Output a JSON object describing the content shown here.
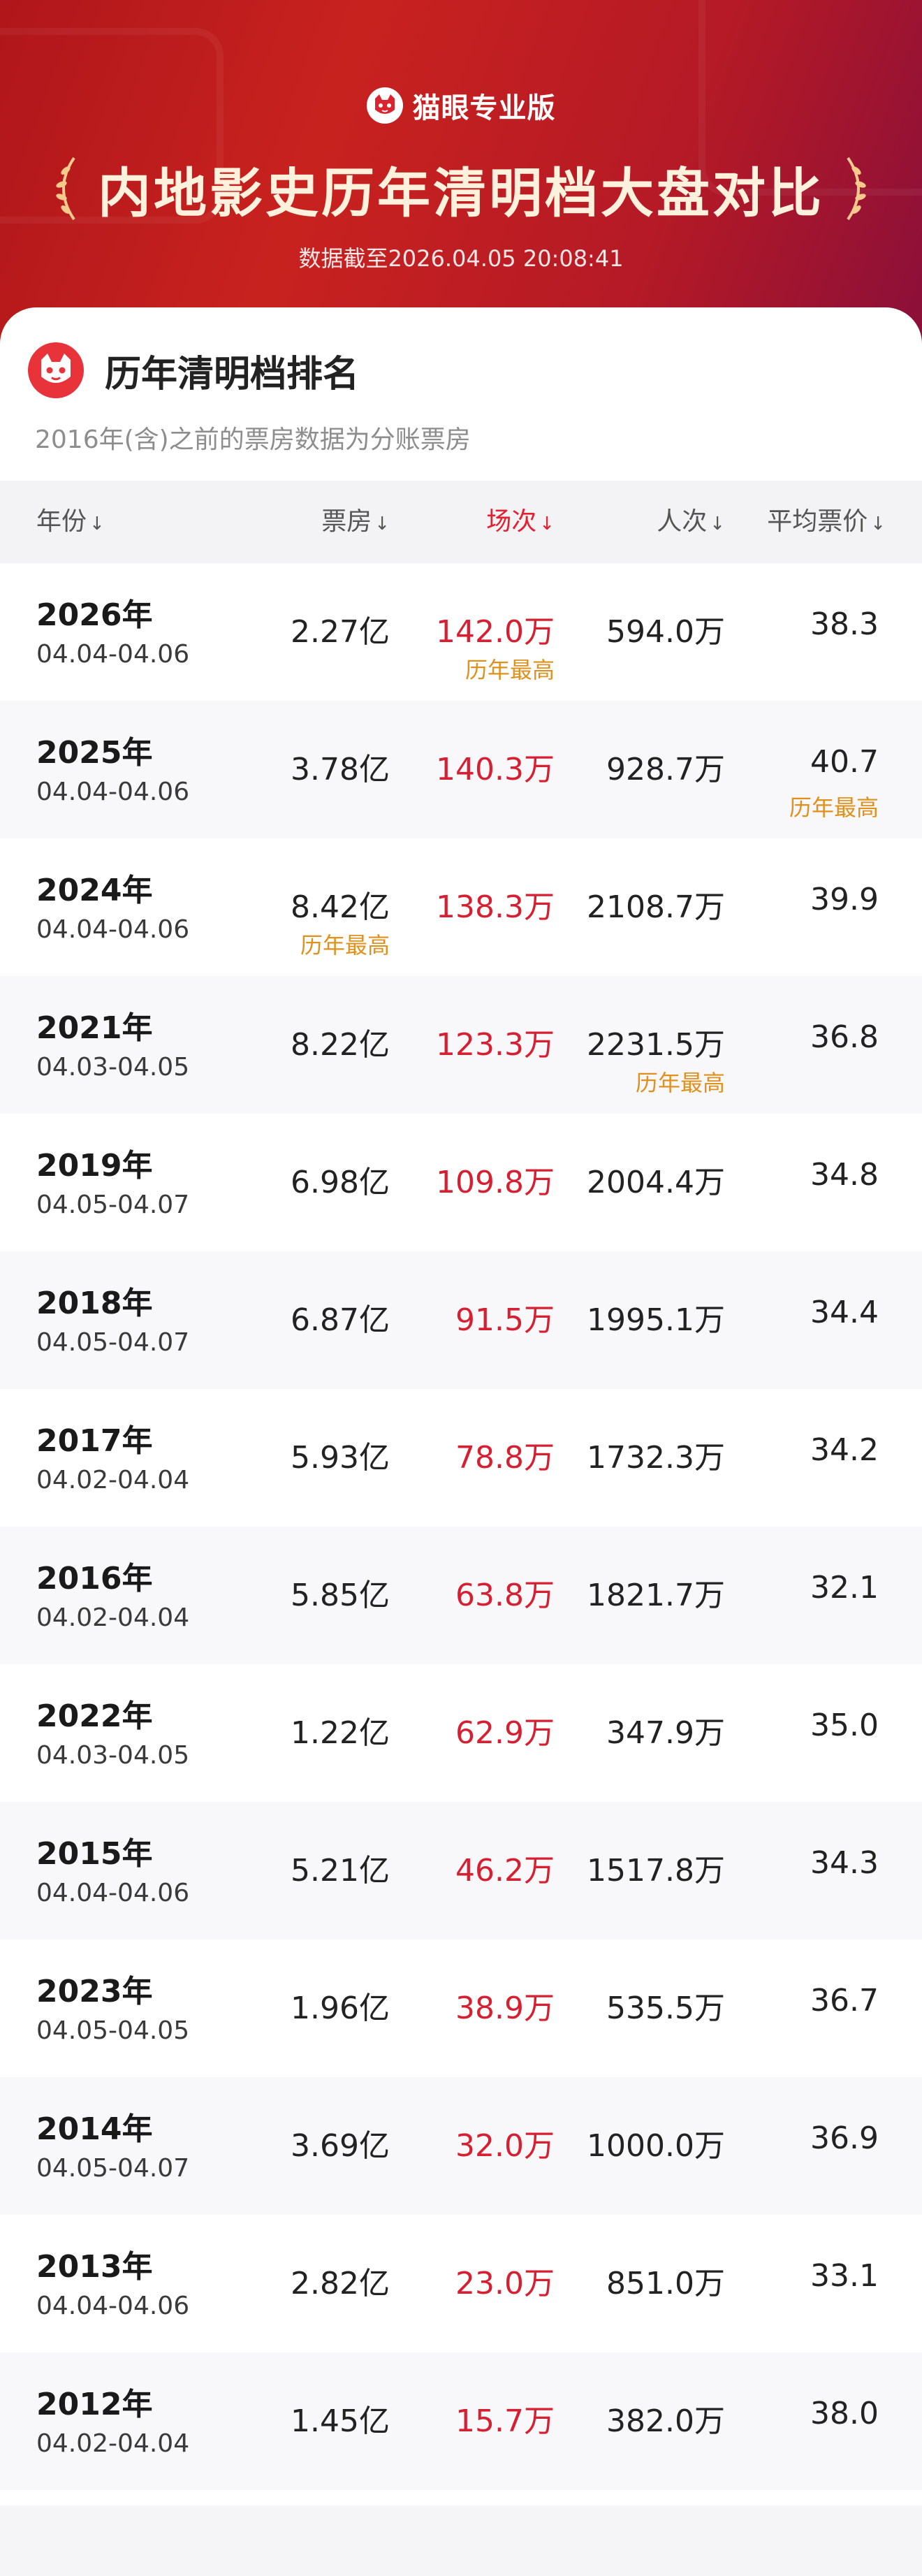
{
  "header": {
    "brand": "猫眼专业版",
    "title": "内地影史历年清明档大盘对比",
    "updated": "数据截至2026.04.05 20:08:41"
  },
  "section": {
    "title": "历年清明档排名",
    "note": "2016年(含)之前的票房数据为分账票房"
  },
  "columns": {
    "year": "年份",
    "box_office": "票房",
    "screenings": "场次",
    "admissions": "人次",
    "avg_price": "平均票价",
    "arrow": "↓"
  },
  "rows": [
    {
      "year": "2026年",
      "dates": "04.04-04.06",
      "box_office": "2.27亿",
      "screenings": "142.0万",
      "admissions": "594.0万",
      "avg_price": "38.3",
      "record": "历年最高"
    },
    {
      "year": "2025年",
      "dates": "04.04-04.06",
      "box_office": "3.78亿",
      "screenings": "140.3万",
      "admissions": "928.7万",
      "avg_price": "40.7",
      "record": "历年最高"
    },
    {
      "year": "2024年",
      "dates": "04.04-04.06",
      "box_office": "8.42亿",
      "screenings": "138.3万",
      "admissions": "2108.7万",
      "avg_price": "39.9",
      "record": "历年最高"
    },
    {
      "year": "2021年",
      "dates": "04.03-04.05",
      "box_office": "8.22亿",
      "screenings": "123.3万",
      "admissions": "2231.5万",
      "avg_price": "36.8",
      "record": "历年最高"
    },
    {
      "year": "2019年",
      "dates": "04.05-04.07",
      "box_office": "6.98亿",
      "screenings": "109.8万",
      "admissions": "2004.4万",
      "avg_price": "34.8"
    },
    {
      "year": "2018年",
      "dates": "04.05-04.07",
      "box_office": "6.87亿",
      "screenings": "91.5万",
      "admissions": "1995.1万",
      "avg_price": "34.4"
    },
    {
      "year": "2017年",
      "dates": "04.02-04.04",
      "box_office": "5.93亿",
      "screenings": "78.8万",
      "admissions": "1732.3万",
      "avg_price": "34.2"
    },
    {
      "year": "2016年",
      "dates": "04.02-04.04",
      "box_office": "5.85亿",
      "screenings": "63.8万",
      "admissions": "1821.7万",
      "avg_price": "32.1"
    },
    {
      "year": "2022年",
      "dates": "04.03-04.05",
      "box_office": "1.22亿",
      "screenings": "62.9万",
      "admissions": "347.9万",
      "avg_price": "35.0"
    },
    {
      "year": "2015年",
      "dates": "04.04-04.06",
      "box_office": "5.21亿",
      "screenings": "46.2万",
      "admissions": "1517.8万",
      "avg_price": "34.3"
    },
    {
      "year": "2023年",
      "dates": "04.05-04.05",
      "box_office": "1.96亿",
      "screenings": "38.9万",
      "admissions": "535.5万",
      "avg_price": "36.7"
    },
    {
      "year": "2014年",
      "dates": "04.05-04.07",
      "box_office": "3.69亿",
      "screenings": "32.0万",
      "admissions": "1000.0万",
      "avg_price": "36.9"
    },
    {
      "year": "2013年",
      "dates": "04.04-04.06",
      "box_office": "2.82亿",
      "screenings": "23.0万",
      "admissions": "851.0万",
      "avg_price": "33.1"
    },
    {
      "year": "2012年",
      "dates": "04.02-04.04",
      "box_office": "1.45亿",
      "screenings": "15.7万",
      "admissions": "382.0万",
      "avg_price": "38.0"
    }
  ]
}
